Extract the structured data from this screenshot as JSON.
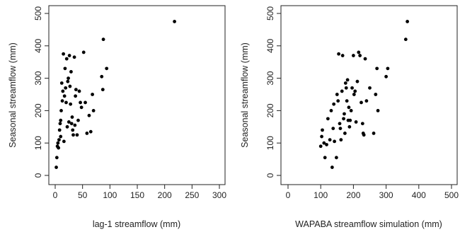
{
  "chart_data": [
    {
      "type": "scatter",
      "xlabel": "lag-1 streamflow (mm)",
      "ylabel": "Seasonal streamflow (mm)",
      "xlim": [
        0,
        300
      ],
      "ylim": [
        0,
        500
      ],
      "xticks": [
        "0",
        "50",
        "100",
        "150",
        "200",
        "250",
        "300"
      ],
      "yticks": [
        "0",
        "100",
        "200",
        "300",
        "400",
        "500"
      ],
      "grid": false,
      "points": [
        [
          2,
          25
        ],
        [
          3,
          55
        ],
        [
          4,
          90
        ],
        [
          5,
          100
        ],
        [
          6,
          85
        ],
        [
          7,
          110
        ],
        [
          8,
          140
        ],
        [
          9,
          160
        ],
        [
          10,
          120
        ],
        [
          10,
          170
        ],
        [
          11,
          200
        ],
        [
          12,
          285
        ],
        [
          13,
          230
        ],
        [
          14,
          260
        ],
        [
          15,
          375
        ],
        [
          16,
          105
        ],
        [
          17,
          245
        ],
        [
          18,
          330
        ],
        [
          19,
          270
        ],
        [
          20,
          225
        ],
        [
          21,
          360
        ],
        [
          22,
          150
        ],
        [
          23,
          290
        ],
        [
          24,
          300
        ],
        [
          25,
          165
        ],
        [
          26,
          370
        ],
        [
          27,
          275
        ],
        [
          28,
          220
        ],
        [
          29,
          320
        ],
        [
          30,
          160
        ],
        [
          31,
          180
        ],
        [
          32,
          140
        ],
        [
          33,
          125
        ],
        [
          35,
          365
        ],
        [
          36,
          155
        ],
        [
          37,
          245
        ],
        [
          38,
          265
        ],
        [
          40,
          125
        ],
        [
          42,
          170
        ],
        [
          44,
          260
        ],
        [
          46,
          225
        ],
        [
          48,
          210
        ],
        [
          52,
          380
        ],
        [
          55,
          225
        ],
        [
          58,
          130
        ],
        [
          62,
          185
        ],
        [
          65,
          135
        ],
        [
          68,
          250
        ],
        [
          70,
          200
        ],
        [
          85,
          305
        ],
        [
          87,
          265
        ],
        [
          88,
          420
        ],
        [
          94,
          330
        ],
        [
          218,
          475
        ]
      ]
    },
    {
      "type": "scatter",
      "xlabel": "WAPABA streamflow simulation (mm)",
      "ylabel": "Seasonal streamflow (mm)",
      "xlim": [
        0,
        500
      ],
      "ylim": [
        0,
        500
      ],
      "xticks": [
        "0",
        "100",
        "200",
        "300",
        "400",
        "500"
      ],
      "yticks": [
        "0",
        "100",
        "200",
        "300",
        "400",
        "500"
      ],
      "grid": false,
      "points": [
        [
          100,
          90
        ],
        [
          103,
          120
        ],
        [
          105,
          140
        ],
        [
          110,
          100
        ],
        [
          113,
          55
        ],
        [
          118,
          95
        ],
        [
          122,
          175
        ],
        [
          128,
          110
        ],
        [
          132,
          200
        ],
        [
          135,
          25
        ],
        [
          138,
          145
        ],
        [
          140,
          220
        ],
        [
          142,
          105
        ],
        [
          148,
          55
        ],
        [
          150,
          250
        ],
        [
          153,
          230
        ],
        [
          155,
          375
        ],
        [
          158,
          160
        ],
        [
          160,
          145
        ],
        [
          162,
          110
        ],
        [
          165,
          260
        ],
        [
          167,
          370
        ],
        [
          170,
          175
        ],
        [
          172,
          190
        ],
        [
          174,
          130
        ],
        [
          176,
          285
        ],
        [
          178,
          270
        ],
        [
          180,
          230
        ],
        [
          182,
          295
        ],
        [
          184,
          170
        ],
        [
          186,
          210
        ],
        [
          188,
          150
        ],
        [
          190,
          170
        ],
        [
          193,
          200
        ],
        [
          196,
          270
        ],
        [
          200,
          370
        ],
        [
          202,
          250
        ],
        [
          205,
          260
        ],
        [
          208,
          165
        ],
        [
          212,
          290
        ],
        [
          216,
          380
        ],
        [
          220,
          370
        ],
        [
          224,
          225
        ],
        [
          228,
          160
        ],
        [
          230,
          130
        ],
        [
          232,
          125
        ],
        [
          236,
          360
        ],
        [
          240,
          230
        ],
        [
          250,
          270
        ],
        [
          262,
          130
        ],
        [
          268,
          250
        ],
        [
          272,
          330
        ],
        [
          275,
          200
        ],
        [
          300,
          305
        ],
        [
          305,
          330
        ],
        [
          360,
          420
        ],
        [
          365,
          475
        ]
      ]
    }
  ]
}
